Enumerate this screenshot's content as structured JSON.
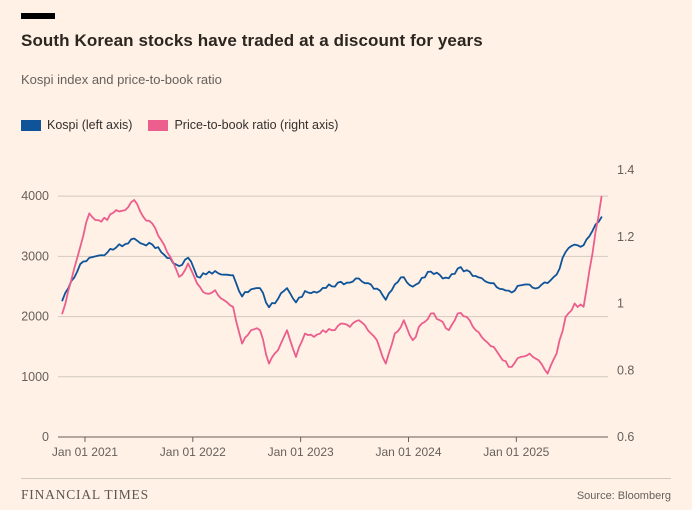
{
  "page": {
    "background": "#FFF1E5",
    "brand": "FINANCIAL TIMES",
    "source": "Source: Bloomberg"
  },
  "chart_data": {
    "type": "line",
    "title": "South Korean stocks have traded at a discount for years",
    "subtitle": "Kospi index and price-to-book ratio",
    "grid_on": true,
    "legend_position": "top-left",
    "grid_color": "#d2c9be",
    "axis_text_color": "#66605c",
    "axis_line_color": "#66605c",
    "x_range": [
      2020.75,
      2025.85
    ],
    "x_start": 2020.79,
    "x_step": 0.083333,
    "x_ticks": [
      {
        "value": 2021,
        "label": "Jan 01 2021"
      },
      {
        "value": 2022,
        "label": "Jan 01 2022"
      },
      {
        "value": 2023,
        "label": "Jan 01 2023"
      },
      {
        "value": 2024,
        "label": "Jan 01 2024"
      },
      {
        "value": 2025,
        "label": "Jan 01 2025"
      }
    ],
    "left_axis": {
      "domain": [
        0,
        4551
      ],
      "ticks": [
        {
          "value": 0,
          "label": "0"
        },
        {
          "value": 1000,
          "label": "1000"
        },
        {
          "value": 2000,
          "label": "2000"
        },
        {
          "value": 3000,
          "label": "3000"
        },
        {
          "value": 4000,
          "label": "4000"
        }
      ]
    },
    "right_axis": {
      "domain": [
        0.6,
        1.421
      ],
      "ticks": [
        {
          "value": 0.6,
          "label": "0.6"
        },
        {
          "value": 0.8,
          "label": "0.8"
        },
        {
          "value": 1,
          "label": "1"
        },
        {
          "value": 1.2,
          "label": "1.2"
        },
        {
          "value": 1.4,
          "label": "1.4"
        }
      ]
    },
    "series": [
      {
        "name": "Kospi (left axis)",
        "axis": "left",
        "color": "#0f5499",
        "values": [
          2267,
          2591,
          2873,
          2976,
          3013,
          3061,
          3148,
          3204,
          3297,
          3202,
          3199,
          3069,
          2971,
          2839,
          2978,
          2663,
          2700,
          2758,
          2695,
          2686,
          2333,
          2452,
          2472,
          2155,
          2294,
          2473,
          2236,
          2425,
          2413,
          2477,
          2502,
          2577,
          2564,
          2633,
          2556,
          2465,
          2278,
          2535,
          2655,
          2497,
          2642,
          2747,
          2692,
          2636,
          2797,
          2771,
          2674,
          2593,
          2556,
          2455,
          2400,
          2518,
          2532,
          2481,
          2556,
          2698,
          3072,
          3196,
          3186,
          3425,
          3650
        ]
      },
      {
        "name": "Price-to-book ratio (right axis)",
        "axis": "right",
        "color": "#eb5e8d",
        "values": [
          0.97,
          1.07,
          1.17,
          1.27,
          1.25,
          1.25,
          1.28,
          1.28,
          1.31,
          1.26,
          1.24,
          1.19,
          1.14,
          1.08,
          1.12,
          1.06,
          1.03,
          1.04,
          1.01,
          0.99,
          0.88,
          0.92,
          0.92,
          0.82,
          0.86,
          0.92,
          0.84,
          0.91,
          0.9,
          0.92,
          0.92,
          0.94,
          0.93,
          0.95,
          0.92,
          0.89,
          0.82,
          0.91,
          0.95,
          0.89,
          0.94,
          0.97,
          0.95,
          0.92,
          0.97,
          0.96,
          0.92,
          0.89,
          0.87,
          0.83,
          0.81,
          0.84,
          0.85,
          0.83,
          0.79,
          0.85,
          0.96,
          1.0,
          0.99,
          1.15,
          1.32
        ]
      }
    ]
  }
}
